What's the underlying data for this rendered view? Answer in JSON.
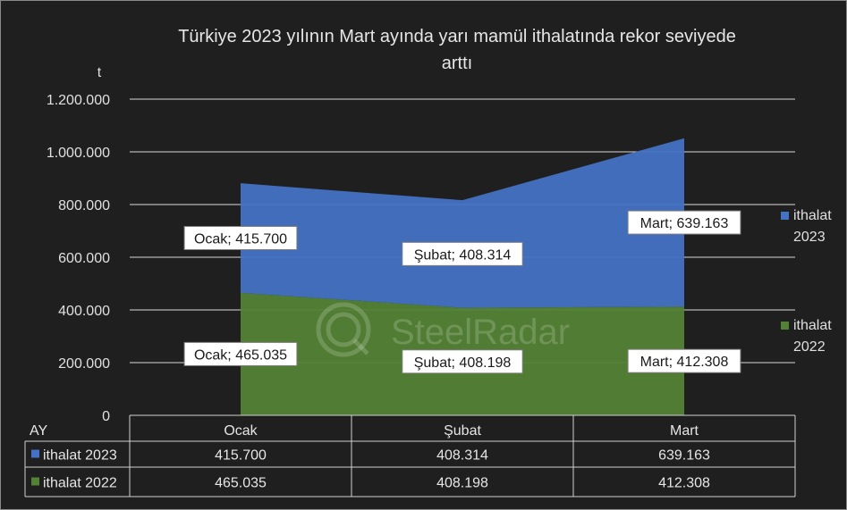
{
  "chart_data": {
    "type": "area",
    "title": "Türkiye 2023 yılının Mart ayında yarı mamül ithalatında rekor seviyede arttı",
    "title_lines": [
      "Türkiye 2023 yılının Mart ayında yarı mamül ithalatında rekor seviyede",
      "arttı"
    ],
    "ylabel": "t",
    "xlabel": "AY",
    "stacked": true,
    "ylim": [
      0,
      1200000
    ],
    "yticks": [
      0,
      200000,
      400000,
      600000,
      800000,
      1000000,
      1200000
    ],
    "ytick_labels": [
      "0",
      "200.000",
      "400.000",
      "600.000",
      "800.000",
      "1.000.000",
      "1.200.000"
    ],
    "grid": true,
    "categories": [
      "Ocak",
      "Şubat",
      "Mart"
    ],
    "series": [
      {
        "name": "ithalat 2022",
        "color": "#548235",
        "values": [
          465035,
          408198,
          412308
        ],
        "labels": [
          "Ocak; 465.035",
          "Şubat; 408.198",
          "Mart; 412.308"
        ],
        "value_labels": [
          "465.035",
          "408.198",
          "412.308"
        ]
      },
      {
        "name": "ithalat 2023",
        "color": "#4472c4",
        "values": [
          415700,
          408314,
          639163
        ],
        "labels": [
          "Ocak; 415.700",
          "Şubat; 408.314",
          "Mart; 639.163"
        ],
        "value_labels": [
          "415.700",
          "408.314",
          "639.163"
        ]
      }
    ],
    "legend": {
      "placement": "right",
      "entries": [
        {
          "line1": "ithalat",
          "line2": "2023",
          "color": "#4472c4"
        },
        {
          "line1": "ithalat",
          "line2": "2022",
          "color": "#548235"
        }
      ]
    },
    "table": {
      "row_header": "AY",
      "rows": [
        {
          "name": "ithalat 2023",
          "color": "#4472c4",
          "cells": [
            "415.700",
            "408.314",
            "639.163"
          ]
        },
        {
          "name": "ithalat 2022",
          "color": "#548235",
          "cells": [
            "465.035",
            "408.198",
            "412.308"
          ]
        }
      ]
    },
    "watermark": "SteelRadar"
  }
}
